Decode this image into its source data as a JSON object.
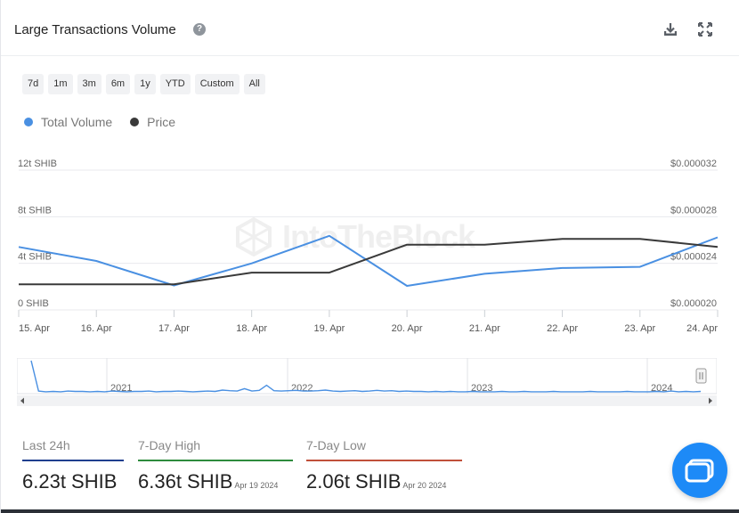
{
  "header": {
    "title": "Large Transactions Volume",
    "help_icon": "question-circle-icon",
    "download_icon": "download-icon",
    "expand_icon": "expand-icon"
  },
  "ranges": [
    "7d",
    "1m",
    "3m",
    "6m",
    "1y",
    "YTD",
    "Custom",
    "All"
  ],
  "legend": [
    {
      "label": "Total Volume",
      "color": "#4a90e2"
    },
    {
      "label": "Price",
      "color": "#3a3a3a"
    }
  ],
  "watermark": "IntoTheBlock",
  "chart_data": {
    "type": "line",
    "categories": [
      "15. Apr",
      "16. Apr",
      "17. Apr",
      "18. Apr",
      "19. Apr",
      "20. Apr",
      "21. Apr",
      "22. Apr",
      "23. Apr",
      "24. Apr"
    ],
    "series": [
      {
        "name": "Total Volume",
        "axis": "left",
        "color": "#4a90e2",
        "values": [
          5.4,
          4.2,
          2.1,
          4.0,
          6.36,
          2.06,
          3.1,
          3.6,
          3.7,
          6.23
        ]
      },
      {
        "name": "Price",
        "axis": "right",
        "color": "#3a3a3a",
        "values": [
          2.22e-05,
          2.22e-05,
          2.22e-05,
          2.32e-05,
          2.32e-05,
          2.56e-05,
          2.56e-05,
          2.61e-05,
          2.61e-05,
          2.54e-05
        ]
      }
    ],
    "y_left": {
      "ticks": [
        "0 SHIB",
        "4t SHIB",
        "8t SHIB",
        "12t SHIB"
      ],
      "range": [
        0,
        12
      ]
    },
    "y_right": {
      "ticks": [
        "$0.000020",
        "$0.000024",
        "$0.000028",
        "$0.000032"
      ],
      "range": [
        2e-05,
        3.2e-05
      ]
    },
    "grid": true,
    "navigator": {
      "years": [
        "2021",
        "2022",
        "2023",
        "2024"
      ],
      "values": [
        0.95,
        0.05,
        0.03,
        0.04,
        0.03,
        0.05,
        0.04,
        0.04,
        0.03,
        0.04,
        0.03,
        0.05,
        0.04,
        0.03,
        0.04,
        0.04,
        0.05,
        0.03,
        0.04,
        0.04,
        0.05,
        0.04,
        0.03,
        0.04,
        0.05,
        0.04,
        0.08,
        0.06,
        0.05,
        0.12,
        0.05,
        0.07,
        0.22,
        0.06,
        0.05,
        0.06,
        0.07,
        0.05,
        0.05,
        0.06,
        0.08,
        0.05,
        0.04,
        0.05,
        0.06,
        0.04,
        0.05,
        0.07,
        0.05,
        0.06,
        0.04,
        0.05,
        0.04,
        0.04,
        0.03,
        0.04,
        0.03,
        0.04,
        0.03,
        0.03,
        0.04,
        0.03,
        0.03,
        0.03,
        0.04,
        0.03,
        0.03,
        0.04,
        0.03,
        0.03,
        0.03,
        0.04,
        0.03,
        0.03,
        0.03,
        0.03,
        0.04,
        0.03,
        0.03,
        0.03,
        0.03,
        0.04,
        0.03,
        0.03,
        0.03,
        0.04,
        0.03,
        0.05,
        0.03,
        0.04,
        0.03,
        0.04
      ]
    }
  },
  "stats": [
    {
      "label": "Last 24h",
      "value": "6.23t SHIB",
      "date": "",
      "color": "#1f3f8f"
    },
    {
      "label": "7-Day High",
      "value": "6.36t SHIB",
      "date": "Apr 19 2024",
      "color": "#2e8b3d"
    },
    {
      "label": "7-Day Low",
      "value": "2.06t SHIB",
      "date": "Apr 20 2024",
      "color": "#c0503a"
    }
  ],
  "chat_icon": "chat-bubble-icon"
}
